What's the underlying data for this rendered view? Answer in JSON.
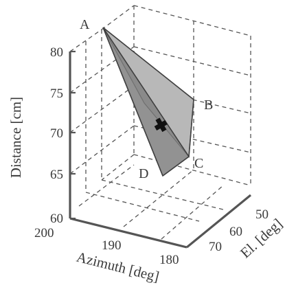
{
  "figure": {
    "axes": {
      "distance": {
        "label": "Distance [cm]",
        "ticks": [
          "80",
          "75",
          "70",
          "65",
          "60"
        ]
      },
      "azimuth": {
        "label": "Azimuth [deg]",
        "ticks": [
          "200",
          "190",
          "180"
        ]
      },
      "elevation": {
        "label": "El. [deg]",
        "ticks": [
          "50",
          "60",
          "70"
        ]
      }
    },
    "vertices": [
      "A",
      "B",
      "C",
      "D"
    ],
    "colors": {
      "face_light": "#b8b8b8",
      "face_mid": "#a2a2a2",
      "face_dark": "#8a8a8a",
      "edge": "#404040",
      "marker": "#111111"
    },
    "marker_icon": "cross-marker"
  }
}
